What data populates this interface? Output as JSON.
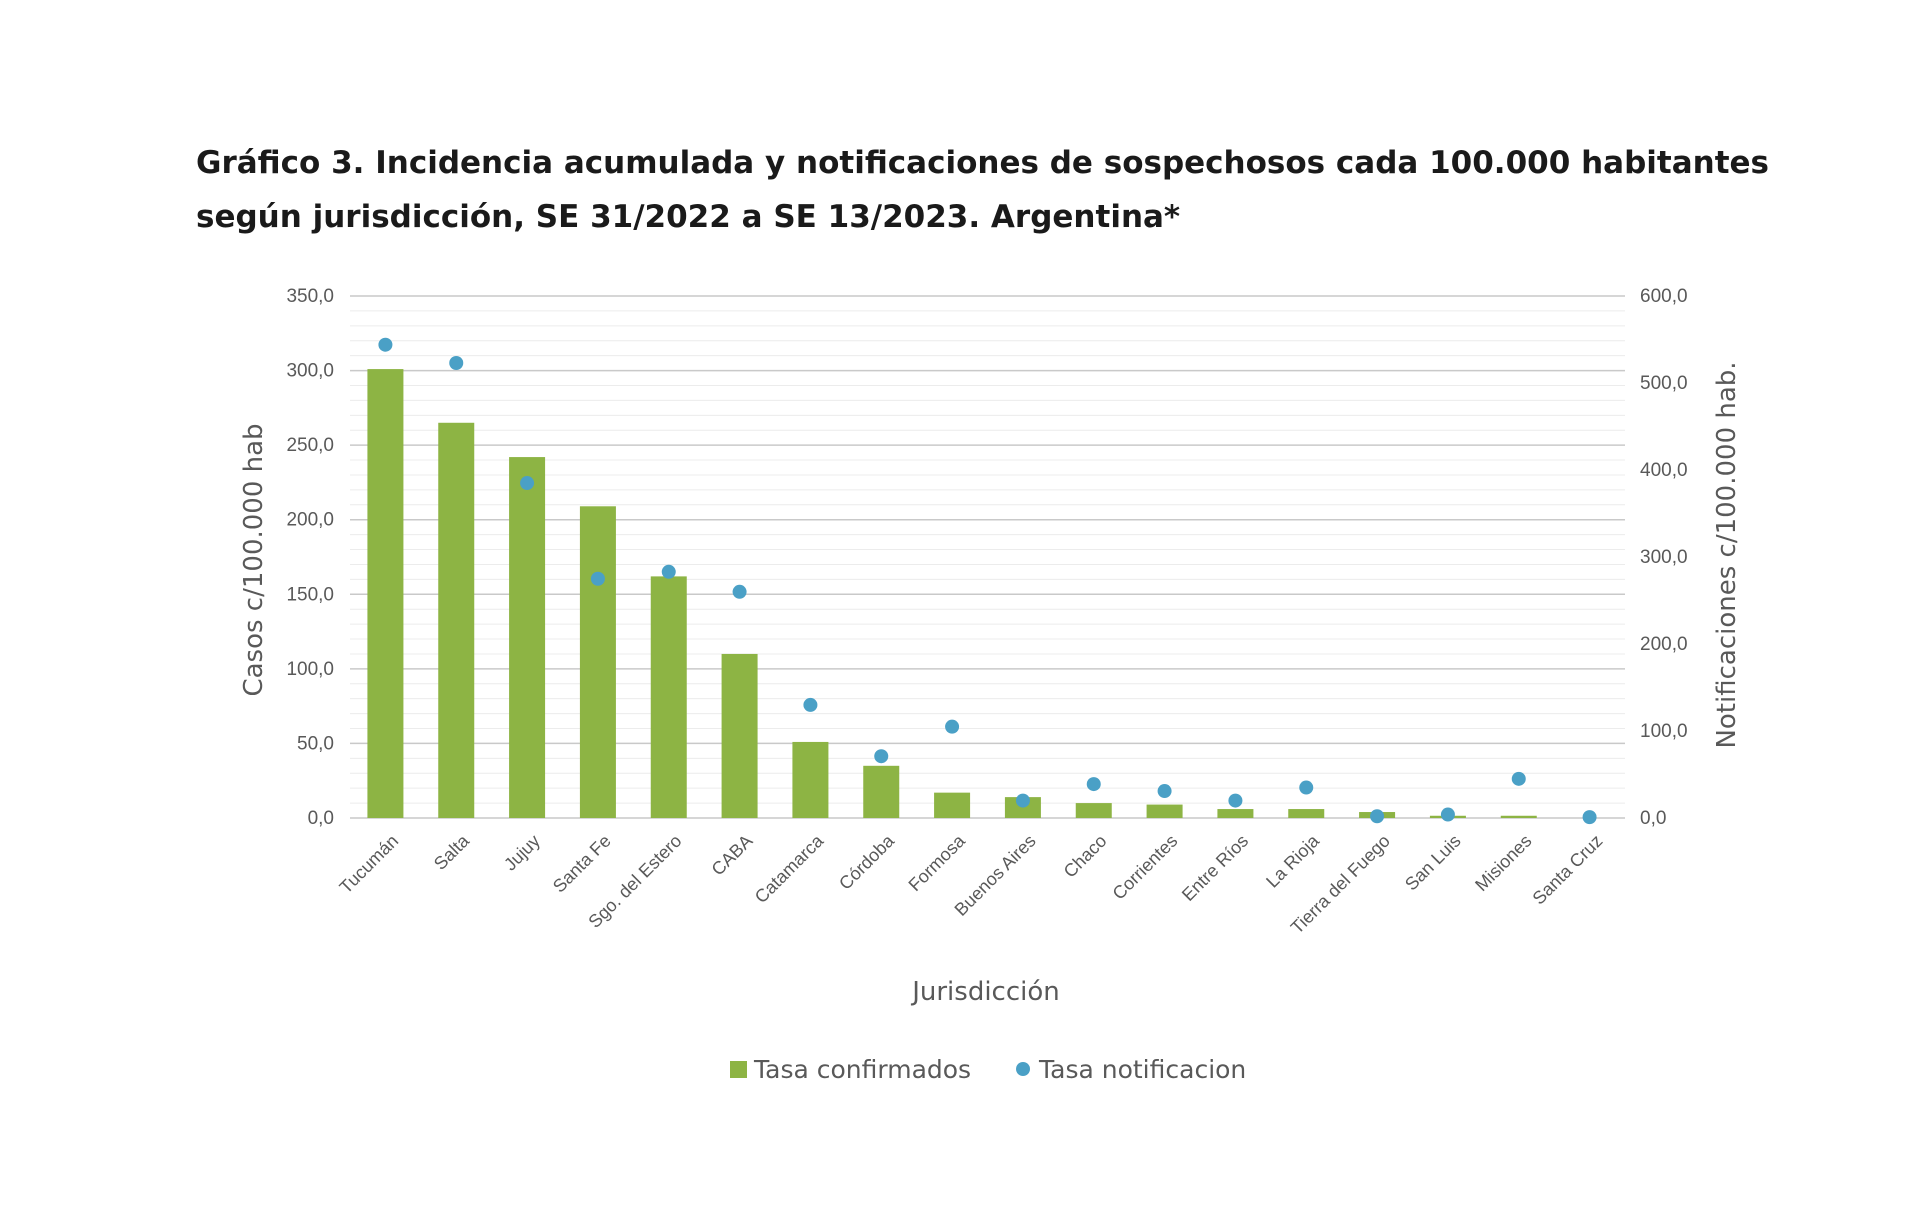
{
  "chart_data": {
    "type": "bar",
    "title": "Gráfico 3. Incidencia acumulada y notificaciones de sospechosos cada 100.000 habitantes según jurisdicción, SE 31/2022 a SE 13/2023. Argentina*",
    "xlabel": "Jurisdicción",
    "ylabel": "Casos c/100.000 hab",
    "y2label": "Notificaciones c/100.000 hab.",
    "ylim": [
      0,
      350
    ],
    "y2lim": [
      0,
      600
    ],
    "yticks": [
      "0,0",
      "50,0",
      "100,0",
      "150,0",
      "200,0",
      "250,0",
      "300,0",
      "350,0"
    ],
    "y2ticks": [
      "0,0",
      "100,0",
      "200,0",
      "300,0",
      "400,0",
      "500,0",
      "600,0"
    ],
    "grid": true,
    "legend_position": "bottom",
    "categories": [
      "Tucumán",
      "Salta",
      "Jujuy",
      "Santa Fe",
      "Sgo. del Estero",
      "CABA",
      "Catamarca",
      "Córdoba",
      "Formosa",
      "Buenos Aires",
      "Chaco",
      "Corrientes",
      "Entre Ríos",
      "La Rioja",
      "Tierra del Fuego",
      "San Luis",
      "Misiones",
      "Santa Cruz"
    ],
    "series": [
      {
        "name": "Tasa confirmados",
        "type": "bar",
        "axis": "left",
        "color": "#8db444",
        "values": [
          301,
          265,
          242,
          209,
          162,
          110,
          51,
          35,
          17,
          14,
          10,
          9,
          6,
          6,
          4,
          1.5,
          1.5,
          0
        ]
      },
      {
        "name": "Tasa notificacion",
        "type": "scatter",
        "axis": "right",
        "color": "#4aa0c6",
        "values": [
          544,
          523,
          385,
          275,
          283,
          260,
          130,
          71,
          105,
          20,
          39,
          31,
          20,
          35,
          2,
          4,
          45,
          1
        ]
      }
    ]
  }
}
